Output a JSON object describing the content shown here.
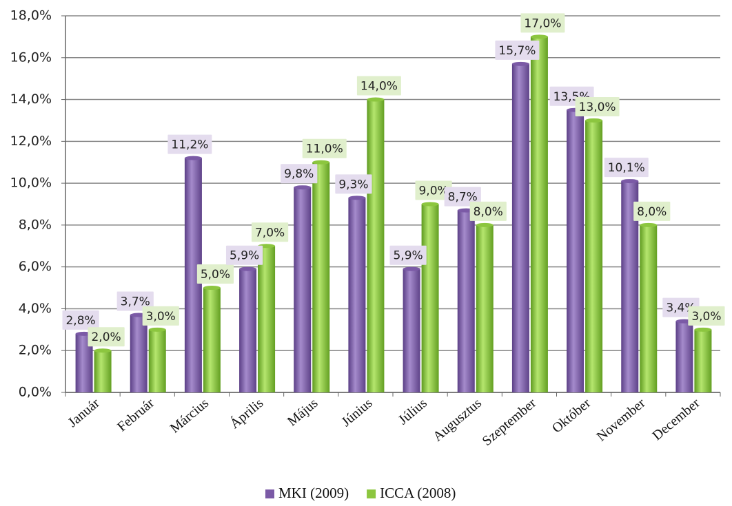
{
  "chart_data": {
    "type": "bar",
    "categories": [
      "Január",
      "Február",
      "Március",
      "Április",
      "Május",
      "Június",
      "Július",
      "Augusztus",
      "Szeptember",
      "Október",
      "November",
      "December"
    ],
    "series": [
      {
        "name": "MKI (2009)",
        "color": "#7b5aa6",
        "values": [
          2.8,
          3.7,
          11.2,
          5.9,
          9.8,
          9.3,
          5.9,
          8.7,
          15.7,
          13.5,
          10.1,
          3.4
        ],
        "value_labels": [
          "2,8%",
          "3,7%",
          "11,2%",
          "5,9%",
          "9,8%",
          "9,3%",
          "5,9%",
          "8,7%",
          "15,7%",
          "13,5%",
          "10,1%",
          "3,4%"
        ]
      },
      {
        "name": "ICCA (2008)",
        "color": "#8cc63f",
        "values": [
          2.0,
          3.0,
          5.0,
          7.0,
          11.0,
          14.0,
          9.0,
          8.0,
          17.0,
          13.0,
          8.0,
          3.0
        ],
        "value_labels": [
          "2,0%",
          "3,0%",
          "5,0%",
          "7,0%",
          "11,0%",
          "14,0%",
          "9,0%",
          "8,0%",
          "17,0%",
          "13,0%",
          "8,0%",
          "3,0%"
        ]
      }
    ],
    "ylim": [
      0,
      18
    ],
    "yticks": [
      {
        "value": 0,
        "label": "0,0%"
      },
      {
        "value": 2,
        "label": "2,0%"
      },
      {
        "value": 4,
        "label": "4,0%"
      },
      {
        "value": 6,
        "label": "6,0%"
      },
      {
        "value": 8,
        "label": "8,0%"
      },
      {
        "value": 10,
        "label": "10,0%"
      },
      {
        "value": 12,
        "label": "12,0%"
      },
      {
        "value": 14,
        "label": "14,0%"
      },
      {
        "value": 16,
        "label": "16,0%"
      },
      {
        "value": 18,
        "label": "18,0%"
      }
    ],
    "grid": true,
    "legend": "bottom"
  }
}
